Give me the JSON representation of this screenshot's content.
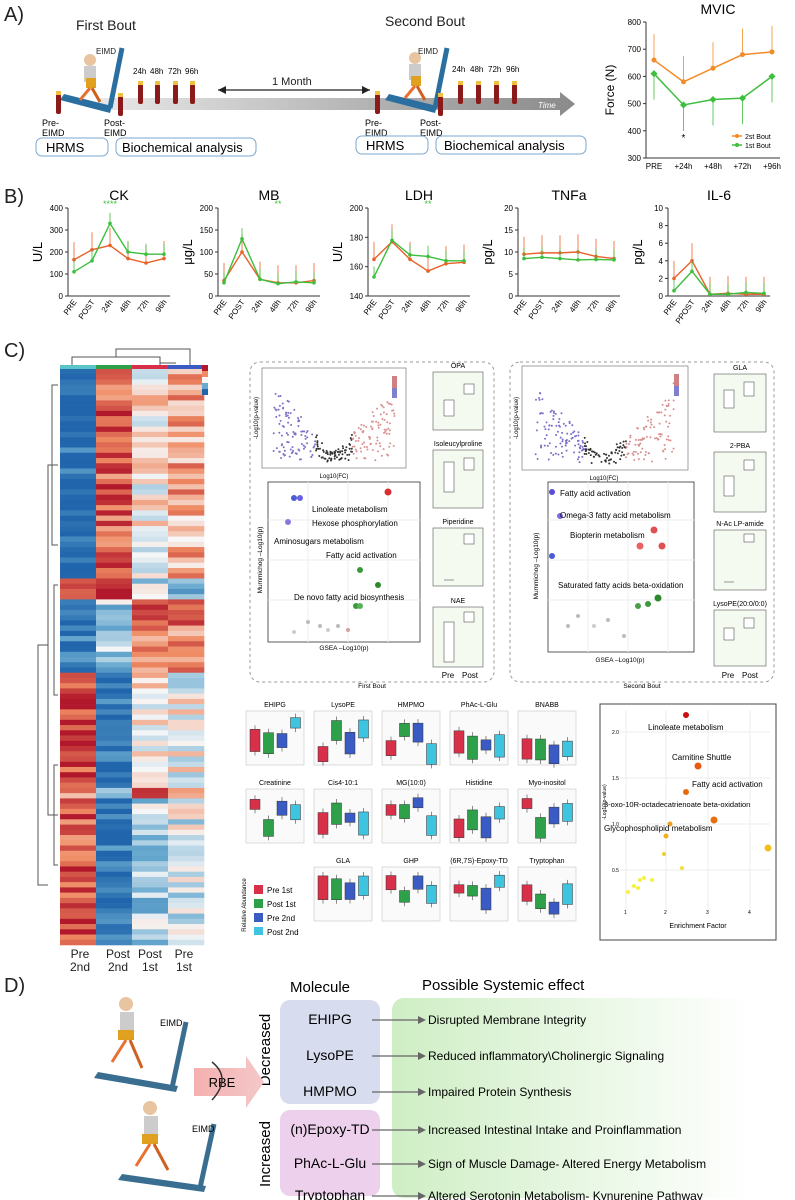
{
  "panels": {
    "a": "A)",
    "b": "B)",
    "c": "C)",
    "d": "D)"
  },
  "panel_a": {
    "first_bout": "First Bout",
    "second_bout": "Second Bout",
    "eimd": "EIMD",
    "timepoints": [
      "24h",
      "48h",
      "72h",
      "96h"
    ],
    "one_month": "1 Month",
    "time": "Time",
    "pre_eimd": [
      "Pre-",
      "EIMD"
    ],
    "post_eimd": [
      "Post-",
      "EIMD"
    ],
    "hrms": "HRMS",
    "biochem": "Biochemical analysis"
  },
  "chart_data": [
    {
      "type": "line",
      "title": "MVIC",
      "ylabel": "Force (N)",
      "categories": [
        "PRE",
        "+24h",
        "+48h",
        "+72h",
        "+96h"
      ],
      "ylim": [
        300,
        800
      ],
      "yticks": [
        300,
        400,
        500,
        600,
        700,
        800
      ],
      "legend_position": "bottom-right",
      "series": [
        {
          "name": "2st Bout",
          "color": "#F28C28",
          "values": [
            660,
            580,
            630,
            680,
            690
          ]
        },
        {
          "name": "1st Bout",
          "color": "#3DBE3D",
          "values": [
            610,
            495,
            515,
            520,
            600
          ]
        }
      ],
      "annotations": [
        {
          "x": "+24h",
          "text": "*"
        }
      ]
    },
    {
      "type": "line",
      "title": "CK",
      "ylabel": "U/L",
      "categories": [
        "PRE",
        "POST",
        "24h",
        "48h",
        "72h",
        "96h"
      ],
      "ylim": [
        0,
        400
      ],
      "yticks": [
        0,
        100,
        200,
        300,
        400
      ],
      "annotation": "****",
      "series": [
        {
          "color": "#E8622A",
          "values": [
            165,
            210,
            230,
            170,
            150,
            170
          ]
        },
        {
          "color": "#3DBE3D",
          "values": [
            110,
            160,
            330,
            200,
            190,
            190
          ]
        }
      ]
    },
    {
      "type": "line",
      "title": "MB",
      "ylabel": "μg/L",
      "categories": [
        "PRE",
        "POST",
        "24h",
        "48h",
        "72h",
        "96h"
      ],
      "ylim": [
        0,
        200
      ],
      "yticks": [
        0,
        50,
        100,
        150,
        200
      ],
      "annotation": "**",
      "series": [
        {
          "color": "#E8622A",
          "values": [
            35,
            100,
            38,
            30,
            30,
            35
          ]
        },
        {
          "color": "#3DBE3D",
          "values": [
            30,
            130,
            38,
            28,
            32,
            30
          ]
        }
      ]
    },
    {
      "type": "line",
      "title": "LDH",
      "ylabel": "U/L",
      "categories": [
        "PRE",
        "POST",
        "24h",
        "48h",
        "72h",
        "96h"
      ],
      "ylim": [
        140,
        200
      ],
      "yticks": [
        140,
        160,
        180,
        200
      ],
      "annotation": "**",
      "series": [
        {
          "color": "#E8622A",
          "values": [
            165,
            177,
            165,
            157,
            162,
            163
          ]
        },
        {
          "color": "#3DBE3D",
          "values": [
            153,
            178,
            168,
            167,
            164,
            164
          ]
        }
      ]
    },
    {
      "type": "line",
      "title": "TNFa",
      "ylabel": "pg/L",
      "categories": [
        "PRE",
        "POST",
        "24h",
        "48h",
        "72h",
        "96h"
      ],
      "ylim": [
        0,
        20
      ],
      "yticks": [
        0,
        5,
        10,
        15,
        20
      ],
      "series": [
        {
          "color": "#E8622A",
          "values": [
            9.5,
            9.8,
            9.8,
            10,
            9,
            8.5
          ]
        },
        {
          "color": "#3DBE3D",
          "values": [
            8.5,
            8.8,
            8.5,
            8.2,
            8.3,
            8.2
          ]
        }
      ]
    },
    {
      "type": "line",
      "title": "IL-6",
      "ylabel": "pg/L",
      "categories": [
        "PRE",
        "PPOST",
        "24h",
        "48h",
        "72h",
        "96h"
      ],
      "ylim": [
        0,
        10
      ],
      "yticks": [
        0,
        2,
        4,
        6,
        8,
        10
      ],
      "series": [
        {
          "color": "#E8622A",
          "values": [
            2,
            4,
            0.2,
            0.3,
            0.2,
            0.2
          ]
        },
        {
          "color": "#3DBE3D",
          "values": [
            0.6,
            2.8,
            0.2,
            0.2,
            0.4,
            0.3
          ]
        }
      ]
    }
  ],
  "heatmap": {
    "columns": [
      [
        "Pre",
        "2nd"
      ],
      [
        "Post",
        "2nd"
      ],
      [
        "Post",
        "1st"
      ],
      [
        "Pre",
        "1st"
      ]
    ],
    "col_colors": [
      "#5BC4C8",
      "#2FA04A",
      "#D9304A",
      "#3B5BC4"
    ]
  },
  "first_bout": {
    "caption": "First Bout",
    "volcano_x": "Log10(FC)",
    "volcano_y": "-Log10(p-value)",
    "mummichog_y": "Mummichog –Log10(p)",
    "gsea_x": "GSEA –Log10(p)",
    "pathways": [
      "Linoleate metabolism",
      "Hexose phosphorylation",
      "Aminosugars metabolism",
      "Fatty acid activation",
      "De novo fatty acid biosynthesis"
    ],
    "box_titles": [
      "OPA",
      "Isoleucylproline",
      "Piperidine",
      "NAE"
    ],
    "box_x": [
      "Pre",
      "Post"
    ]
  },
  "second_bout": {
    "caption": "Second Bout",
    "volcano_x": "Log10(FC)",
    "volcano_y": "-Log10(p-value)",
    "mummichog_y": "Mummichog –Log10(p)",
    "gsea_x": "GSEA –Log10(p)",
    "pathways": [
      "Fatty acid activation",
      "Omega-3 fatty acid metabolism",
      "Biopterin metabolism",
      "Saturated fatty acids beta-oxidation"
    ],
    "box_titles": [
      "GLA",
      "2-PBA",
      "N-Ac LP-amide",
      "LysoPE(20:0/0:0)"
    ],
    "box_x": [
      "Pre",
      "Post"
    ]
  },
  "boxgrid": {
    "titles": [
      "EHIPG",
      "LysoPE",
      "HMPMO",
      "PhAc-L-Glu",
      "BNABB",
      "Creatinine",
      "Cis4-10:1",
      "MG(10:0)",
      "Histidine",
      "Myo-inositol",
      "GLA",
      "GHP",
      "(6R,7S)-Epoxy-TD",
      "Tryptophan"
    ],
    "legend": [
      "Pre 1st",
      "Post 1st",
      "Pre 2nd",
      "Post 2nd"
    ],
    "legend_colors": [
      "#D9304A",
      "#2FA04A",
      "#3B5BC4",
      "#3FC4E0"
    ],
    "rel_abundance": "Relative Abundance"
  },
  "enrichment": {
    "ylabel": "-Log10(p-value)",
    "xlabel": "Enrichment Factor",
    "yticks": [
      "0.5",
      "1.0",
      "1.5",
      "2.0"
    ],
    "xticks": [
      "1",
      "2",
      "3",
      "4"
    ],
    "labels": [
      "Linoleate metabolism",
      "Carnitine Shuttle",
      "Fatty acid activation",
      "3-oxo-10R-octadecatrienoate beta-oxidation",
      "Glycophospholipid metabolism"
    ]
  },
  "panel_d": {
    "molecule_header": "Molecule",
    "effect_header": "Possible Systemic effect",
    "eimd": "EIMD",
    "rbe": "RBE",
    "decreased": "Decreased",
    "increased": "Increased",
    "decreased_rows": [
      {
        "molecule": "EHIPG",
        "effect": "Disrupted Membrane Integrity"
      },
      {
        "molecule": "LysoPE",
        "effect": "Reduced inflammatory\\Cholinergic Signaling"
      },
      {
        "molecule": "HMPMO",
        "effect": "Impaired Protein Synthesis"
      }
    ],
    "increased_rows": [
      {
        "molecule": "(n)Epoxy-TD",
        "effect": "Increased Intestinal Intake and Proinflammation"
      },
      {
        "molecule": "PhAc-L-Glu",
        "effect": "Sign of Muscle Damage- Altered Energy Metabolism"
      },
      {
        "molecule": "Tryptophan",
        "effect": "Altered Serotonin Metabolism- Kynurenine Pathway"
      }
    ]
  }
}
